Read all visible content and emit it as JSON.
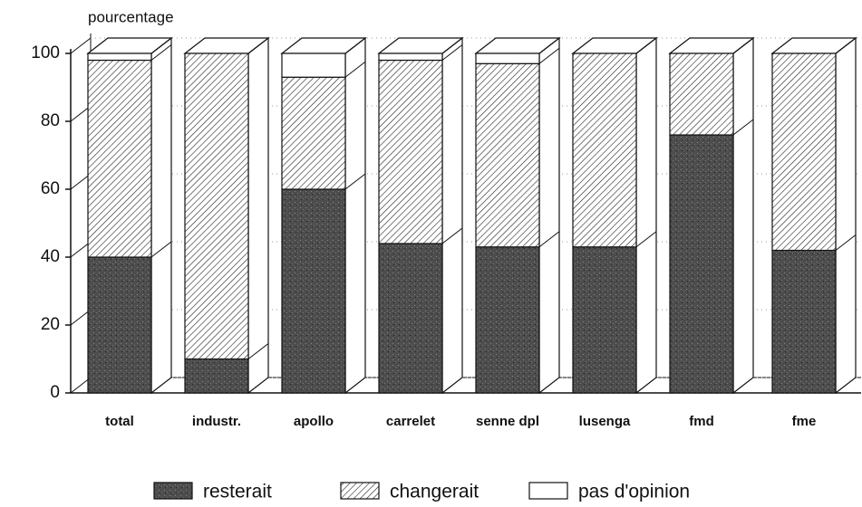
{
  "chart_data": {
    "type": "bar3d-stacked",
    "ylabel": "pourcentage",
    "categories": [
      "total",
      "industr.",
      "apollo",
      "carrelet",
      "senne dpl",
      "lusenga",
      "fmd",
      "fme"
    ],
    "series": [
      {
        "name": "resterait",
        "color": "#555555",
        "pattern": "stipple",
        "values": [
          40,
          10,
          60,
          44,
          43,
          43,
          76,
          42
        ]
      },
      {
        "name": "changerait",
        "color": "#ffffff",
        "pattern": "hatch",
        "values": [
          58,
          90,
          33,
          54,
          54,
          57,
          24,
          58
        ]
      },
      {
        "name": "pas d'opinion",
        "color": "#ffffff",
        "pattern": "none",
        "values": [
          2,
          0,
          7,
          2,
          3,
          0,
          0,
          0
        ]
      }
    ],
    "ylim": [
      0,
      100
    ],
    "yticks": [
      0,
      20,
      40,
      60,
      80,
      100
    ],
    "grid": true
  }
}
